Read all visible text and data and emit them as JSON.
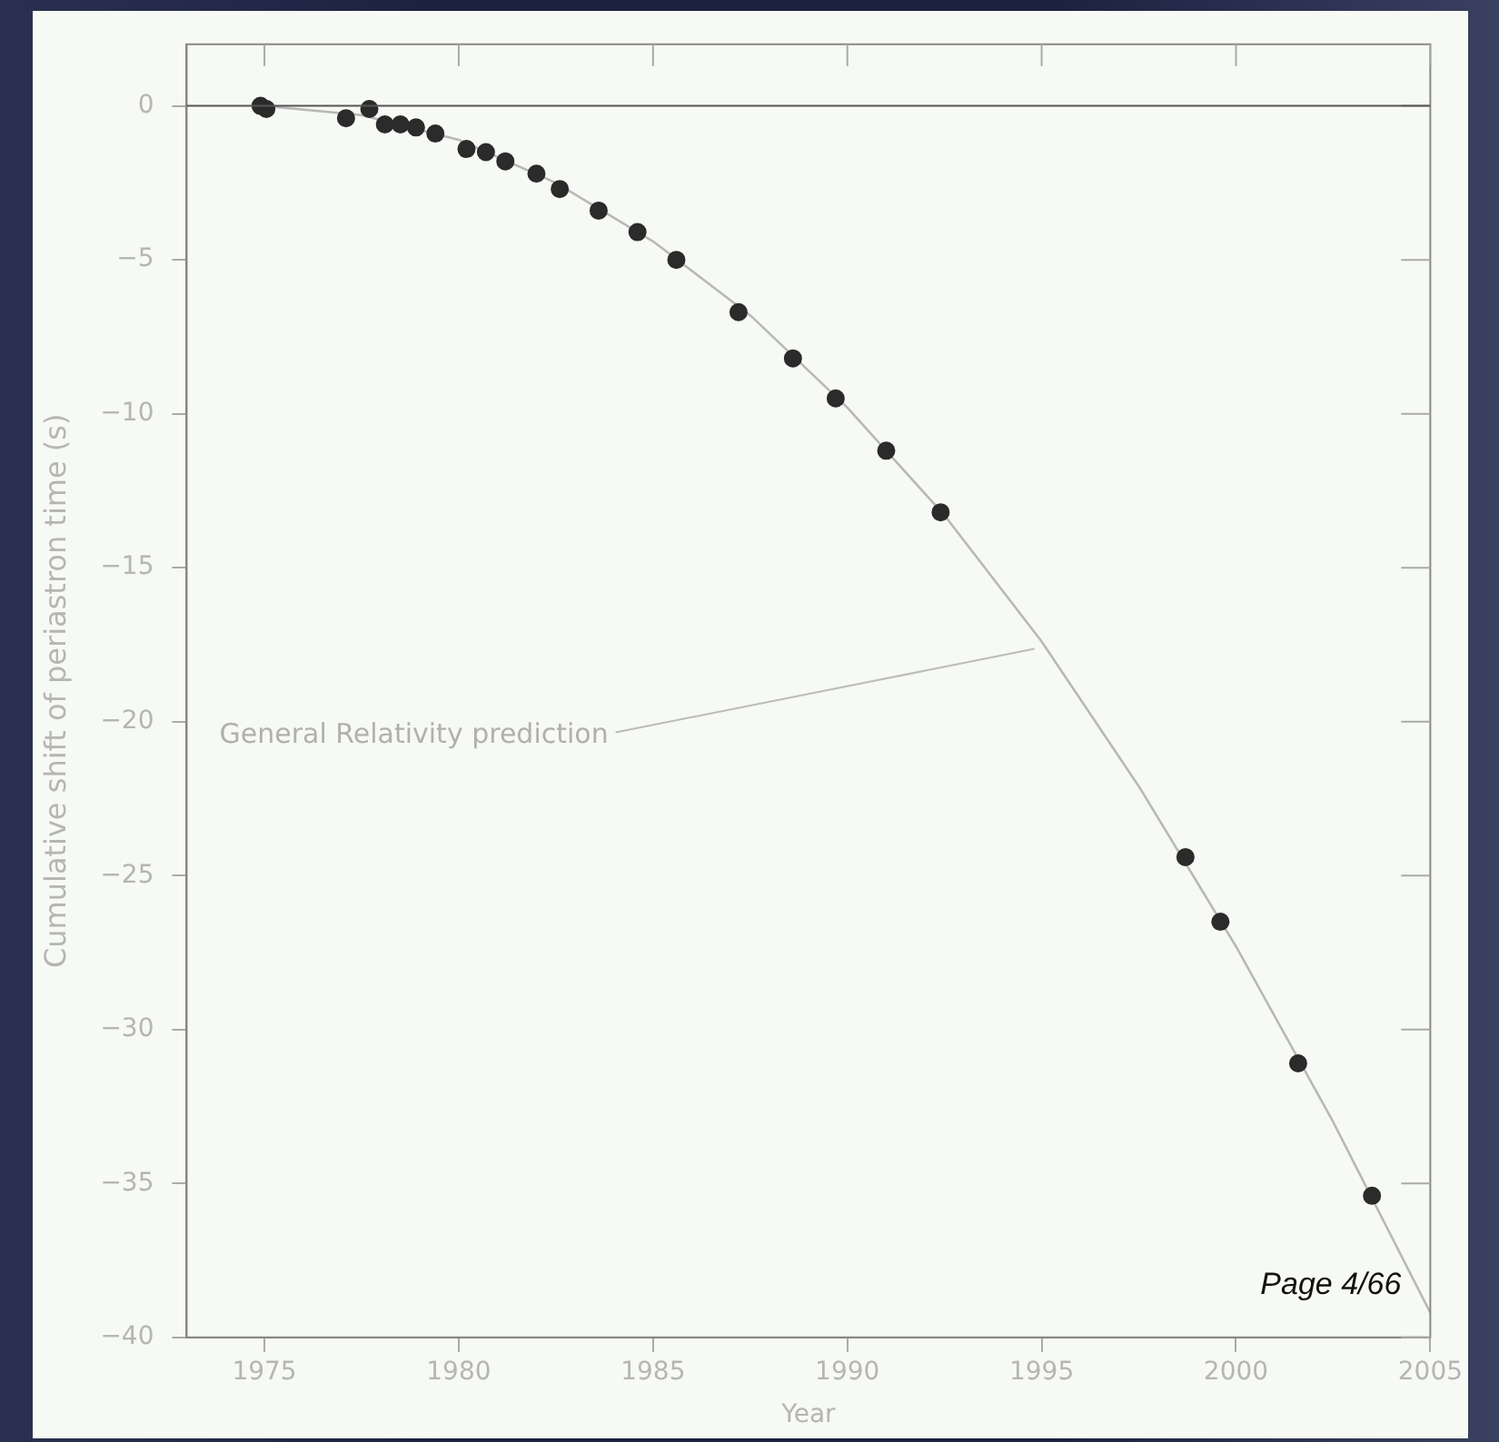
{
  "chart_data": {
    "type": "scatter",
    "xlabel": "Year",
    "ylabel": "Cumulative shift of periastron time (s)",
    "xlim": [
      1973,
      2005
    ],
    "xticks": [
      1975,
      1980,
      1985,
      1990,
      1995,
      2000,
      2005
    ],
    "ylim": [
      -40,
      2
    ],
    "yticks": [
      -40,
      -35,
      -30,
      -25,
      -20,
      -15,
      -10,
      -5,
      0
    ],
    "grid": false,
    "legend": false,
    "marker": "circle",
    "ref_lines": [
      {
        "axis": "y",
        "value": 0,
        "color": "#555555"
      }
    ],
    "series": [
      {
        "type": "scatter",
        "color": "#2b2b2b",
        "x": [
          1974.9,
          1975.05,
          1977.1,
          1977.7,
          1978.1,
          1978.5,
          1978.9,
          1979.4,
          1980.2,
          1980.7,
          1981.2,
          1982.0,
          1982.6,
          1983.6,
          1984.6,
          1985.6,
          1987.2,
          1988.6,
          1989.7,
          1991.0,
          1992.4,
          1998.7,
          1999.6,
          2001.6,
          2003.5
        ],
        "values": [
          0,
          -0.1,
          -0.4,
          -0.1,
          -0.6,
          -0.6,
          -0.7,
          -0.9,
          -1.4,
          -1.5,
          -1.8,
          -2.2,
          -2.7,
          -3.4,
          -4.1,
          -5.0,
          -6.7,
          -8.2,
          -9.5,
          -11.2,
          -13.2,
          -24.4,
          -26.5,
          -31.1,
          -35.4
        ]
      },
      {
        "type": "line",
        "color": "#b8b8b8",
        "line_style": "solid",
        "marker": "none",
        "x": [
          1975,
          1977.5,
          1980,
          1982.5,
          1985,
          1987.5,
          1990,
          1992.5,
          1995,
          1997.5,
          2000,
          2002.5,
          2005
        ],
        "values": [
          0,
          -0.3,
          -1.1,
          -2.5,
          -4.4,
          -6.8,
          -9.8,
          -13.3,
          -17.4,
          -22.1,
          -27.3,
          -33.0,
          -39.2
        ]
      }
    ],
    "annotations": [
      {
        "text": "General Relativity prediction",
        "x": 1995,
        "y": -17.4
      },
      "Page 4/66"
    ]
  }
}
